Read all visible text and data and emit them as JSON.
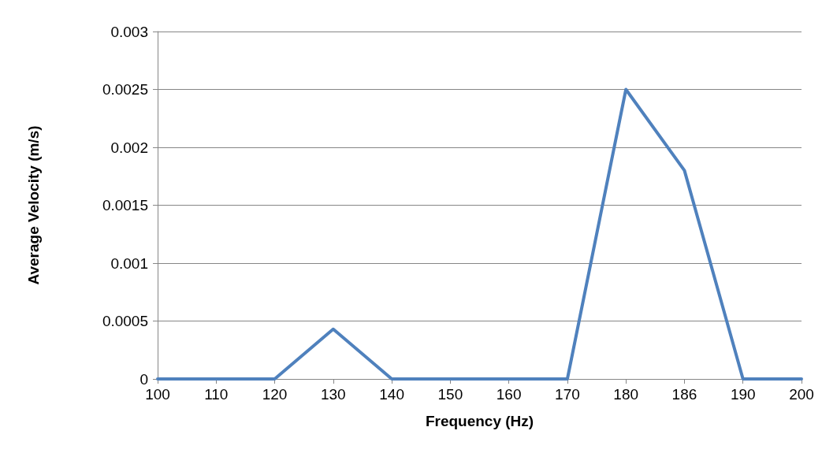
{
  "chart_data": {
    "type": "line",
    "xlabel": "Frequency (Hz)",
    "ylabel": "Average Velocity (m/s)",
    "categories": [
      "100",
      "110",
      "120",
      "130",
      "140",
      "150",
      "160",
      "170",
      "180",
      "186",
      "190",
      "200"
    ],
    "series": [
      {
        "color": "#4f81bd",
        "values": [
          0,
          0,
          0,
          0.00043,
          0,
          0,
          0,
          0,
          0.0025,
          0.0018,
          0,
          0
        ]
      }
    ],
    "ylim": [
      0,
      0.003
    ],
    "yticks": [
      0,
      0.0005,
      0.001,
      0.0015,
      0.002,
      0.0025,
      0.003
    ],
    "grid": "y",
    "marker": "none",
    "line_style": "solid"
  }
}
